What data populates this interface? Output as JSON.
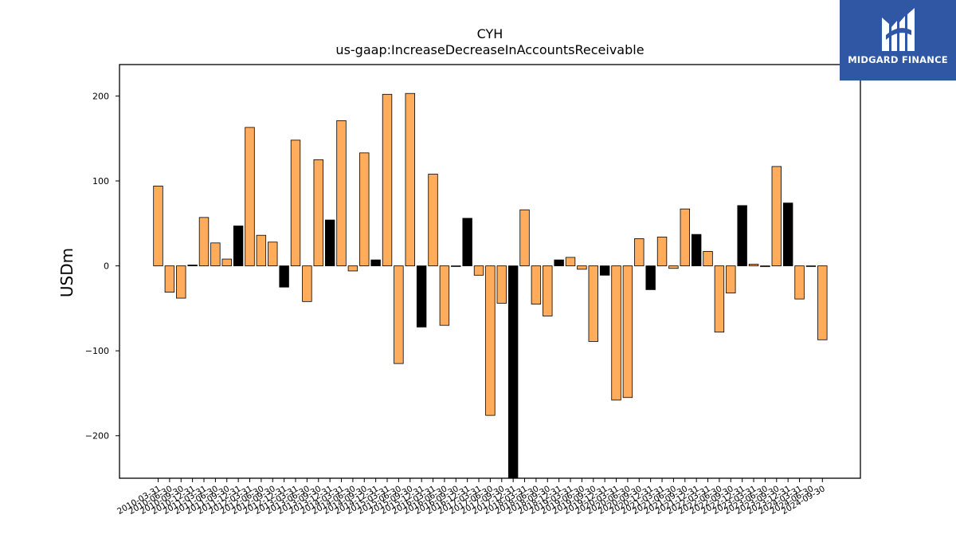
{
  "brand": {
    "name": "MIDGARD FINANCE",
    "logo_icon": "midgard-m-logo-icon",
    "background": "#2f57a4"
  },
  "chart_data": {
    "type": "bar",
    "title": "CYH",
    "subtitle": "us-gaap:IncreaseDecreaseInAccountsReceivable",
    "ylabel": "USDm",
    "xlabel": "",
    "ylim": [
      -250,
      237
    ],
    "yticks": [
      -200,
      -100,
      0,
      100,
      200
    ],
    "grid": false,
    "colors": {
      "q4": "#000000",
      "other": "#ffad5c",
      "edge": "#000000"
    },
    "categories": [
      "2010-03-31",
      "2010-06-30",
      "2010-09-30",
      "2010-12-31",
      "2011-03-31",
      "2011-06-30",
      "2011-09-30",
      "2011-12-31",
      "2012-03-31",
      "2012-06-30",
      "2012-09-30",
      "2012-12-31",
      "2013-03-31",
      "2013-06-30",
      "2013-09-30",
      "2013-12-31",
      "2014-03-31",
      "2014-06-30",
      "2014-09-30",
      "2014-12-31",
      "2015-03-31",
      "2015-06-30",
      "2015-09-30",
      "2015-12-31",
      "2016-03-31",
      "2016-06-30",
      "2016-09-30",
      "2016-12-31",
      "2017-03-31",
      "2017-06-30",
      "2017-09-30",
      "2017-12-31",
      "2018-03-31",
      "2018-06-30",
      "2018-09-30",
      "2018-12-31",
      "2019-03-31",
      "2019-06-30",
      "2019-09-30",
      "2019-12-31",
      "2020-03-31",
      "2020-06-30",
      "2020-09-30",
      "2020-12-31",
      "2021-03-31",
      "2021-06-30",
      "2021-09-30",
      "2021-12-31",
      "2022-03-31",
      "2022-06-30",
      "2022-09-30",
      "2022-12-31",
      "2023-03-31",
      "2023-06-30",
      "2023-09-30",
      "2023-12-31",
      "2024-03-31",
      "2024-06-30",
      "2024-09-30"
    ],
    "xtick_labels": [
      "2010-03-31",
      "2010-06-30",
      "2010-09-30",
      "2010-12-31",
      "2011-03-31",
      "2011-06-30",
      "2011-09-30",
      "2011-12-31",
      "2012-03-31",
      "2012-06-30",
      "2012-09-30",
      "2012-12-31",
      "2013-03-31",
      "2013-06-30",
      "2013-09-30",
      "2013-12-31",
      "2014-03-31",
      "2014-06-30",
      "2014-09-30",
      "2014-12-31",
      "2015-03-31",
      "2015-06-30",
      "2015-09-30",
      "2015-12-31",
      "2016-03-31",
      "2016-06-30",
      "2016-09-30",
      "2016-12-31",
      "2017-03-31",
      "2017-06-30",
      "2017-09-30",
      "2017-12-31",
      "2018-03-31",
      "2018-06-30",
      "2018-09-30",
      "2018-12-31",
      "2019-03-31",
      "2019-06-30",
      "2019-09-30",
      "2019-12-31",
      "2020-03-31",
      "2020-06-30",
      "2020-09-30",
      "2020-12-31",
      "2021-03-31",
      "2021-06-30",
      "2021-09-30",
      "2021-12-31",
      "2022-03-31",
      "2022-06-30",
      "2022-09-30",
      "2022-12-31",
      "2023-03-31",
      "2023-06-30",
      "2023-09-30",
      "2023-12-31",
      "2024-03-31",
      "2024-06-30",
      "2024-09-30"
    ],
    "values": [
      94,
      -31,
      -38,
      1,
      57,
      27,
      8,
      47,
      163,
      36,
      28,
      -25,
      148,
      -42,
      125,
      54,
      171,
      -6,
      133,
      7,
      202,
      -115,
      203,
      -72,
      108,
      -70,
      0,
      56,
      -11,
      -176,
      -44,
      -253,
      66,
      -45,
      -59,
      7,
      10,
      -4,
      -89,
      -11,
      -158,
      -155,
      32,
      -28,
      34,
      -3,
      67,
      37,
      17,
      -78,
      -32,
      71,
      2,
      -1,
      117,
      74,
      -39,
      0,
      -87
    ]
  }
}
